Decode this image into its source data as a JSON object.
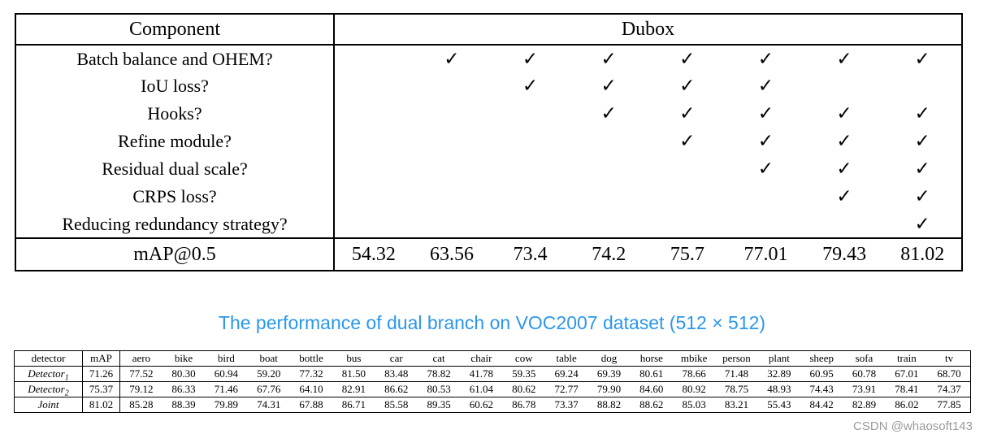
{
  "ablation_table": {
    "header": {
      "component": "Component",
      "group": "Dubox"
    },
    "check_glyph": "✓",
    "rows": [
      {
        "label": "Batch balance and OHEM?",
        "checks": [
          false,
          true,
          true,
          true,
          true,
          true,
          true,
          true
        ]
      },
      {
        "label": "IoU loss?",
        "checks": [
          false,
          false,
          true,
          true,
          true,
          true,
          false,
          false
        ]
      },
      {
        "label": "Hooks?",
        "checks": [
          false,
          false,
          false,
          true,
          true,
          true,
          true,
          true
        ]
      },
      {
        "label": "Refine module?",
        "checks": [
          false,
          false,
          false,
          false,
          true,
          true,
          true,
          true
        ]
      },
      {
        "label": "Residual dual scale?",
        "checks": [
          false,
          false,
          false,
          false,
          false,
          true,
          true,
          true
        ]
      },
      {
        "label": "CRPS loss?",
        "checks": [
          false,
          false,
          false,
          false,
          false,
          false,
          true,
          true
        ]
      },
      {
        "label": "Reducing redundancy strategy?",
        "checks": [
          false,
          false,
          false,
          false,
          false,
          false,
          false,
          true
        ]
      }
    ],
    "map_row": {
      "label": "mAP@0.5",
      "values": [
        "54.32",
        "63.56",
        "73.4",
        "74.2",
        "75.7",
        "77.01",
        "79.43",
        "81.02"
      ]
    }
  },
  "caption": {
    "text": "The performance of dual branch on VOC2007 dataset (512 × 512)",
    "color": "#2b97ea"
  },
  "performance_table": {
    "columns": [
      "detector",
      "mAP",
      "aero",
      "bike",
      "bird",
      "boat",
      "bottle",
      "bus",
      "car",
      "cat",
      "chair",
      "cow",
      "table",
      "dog",
      "horse",
      "mbike",
      "person",
      "plant",
      "sheep",
      "sofa",
      "train",
      "tv"
    ],
    "rows": [
      {
        "detector": {
          "name": "Detector",
          "sub": "1"
        },
        "values": [
          "71.26",
          "77.52",
          "80.30",
          "60.94",
          "59.20",
          "77.32",
          "81.50",
          "83.48",
          "78.82",
          "41.78",
          "59.35",
          "69.24",
          "69.39",
          "80.61",
          "78.66",
          "71.48",
          "32.89",
          "60.95",
          "60.78",
          "67.01",
          "68.70"
        ]
      },
      {
        "detector": {
          "name": "Detector",
          "sub": "2"
        },
        "values": [
          "75.37",
          "79.12",
          "86.33",
          "71.46",
          "67.76",
          "64.10",
          "82.91",
          "86.62",
          "80.53",
          "61.04",
          "80.62",
          "72.77",
          "79.90",
          "84.60",
          "80.92",
          "78.75",
          "48.93",
          "74.43",
          "73.91",
          "78.41",
          "74.37"
        ]
      },
      {
        "detector": {
          "name": "Joint",
          "sub": ""
        },
        "values": [
          "81.02",
          "85.28",
          "88.39",
          "79.89",
          "74.31",
          "67.88",
          "86.71",
          "85.58",
          "89.35",
          "60.62",
          "86.78",
          "73.37",
          "88.82",
          "88.62",
          "85.03",
          "83.21",
          "55.43",
          "84.42",
          "82.89",
          "86.02",
          "77.85"
        ]
      }
    ]
  },
  "watermark": "CSDN @whaosoft143"
}
